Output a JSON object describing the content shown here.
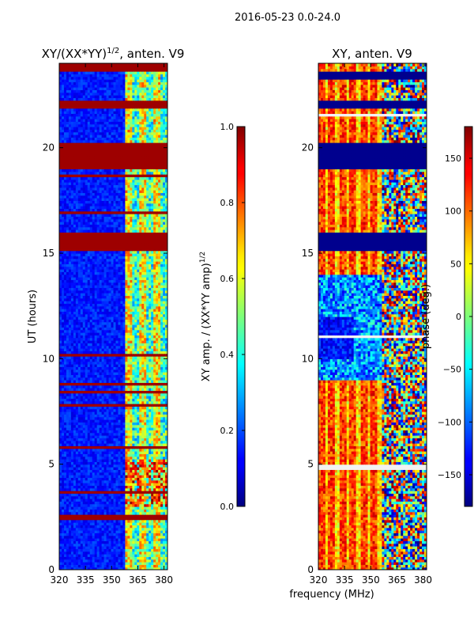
{
  "figure_title": "2016-05-23 0.0-24.0",
  "chart_data": [
    {
      "type": "heatmap",
      "title_main": "XY/(XX*YY)",
      "title_sup": "1/2",
      "title_rest": ", anten. V9",
      "xlabel": "",
      "ylabel": "UT (hours)",
      "xlim": [
        320,
        382
      ],
      "ylim": [
        0,
        24
      ],
      "x_ticks": [
        320,
        335,
        350,
        365,
        380
      ],
      "y_ticks": [
        0,
        5,
        10,
        15,
        20
      ],
      "colorbar": {
        "label_main": "XY amp. / (XX*YY amp)",
        "label_sup": "1/2",
        "range": [
          0.0,
          1.0
        ],
        "ticks": [
          0.0,
          0.2,
          0.4,
          0.6,
          0.8,
          1.0
        ],
        "tick_labels": [
          "0.0",
          "0.2",
          "0.4",
          "0.6",
          "0.8",
          "1.0"
        ]
      },
      "saturated_bands_hours": [
        [
          19.0,
          20.3
        ],
        [
          21.9,
          22.3
        ],
        [
          15.1,
          16.0
        ],
        [
          23.6,
          24.0
        ]
      ],
      "background_level": 0.15,
      "active_band_mhz": [
        358,
        382
      ]
    },
    {
      "type": "heatmap",
      "title": "XY, anten. V9",
      "xlabel": "frequency (MHz)",
      "ylabel": "",
      "xlim": [
        320,
        382
      ],
      "ylim": [
        0,
        24
      ],
      "x_ticks": [
        320,
        335,
        350,
        365,
        380
      ],
      "y_ticks": [
        0,
        5,
        10,
        15,
        20
      ],
      "colorbar": {
        "label": "phase (deg.)",
        "range": [
          -180,
          180
        ],
        "ticks": [
          -150,
          -100,
          -50,
          0,
          50,
          100,
          150
        ],
        "tick_labels": [
          "−150",
          "−100",
          "−50",
          "0",
          "50",
          "100",
          "150"
        ]
      },
      "flagged_bands_hours": [
        [
          19.0,
          20.3
        ],
        [
          15.1,
          16.0
        ],
        [
          21.9,
          22.3
        ],
        [
          23.2,
          23.6
        ]
      ]
    }
  ]
}
